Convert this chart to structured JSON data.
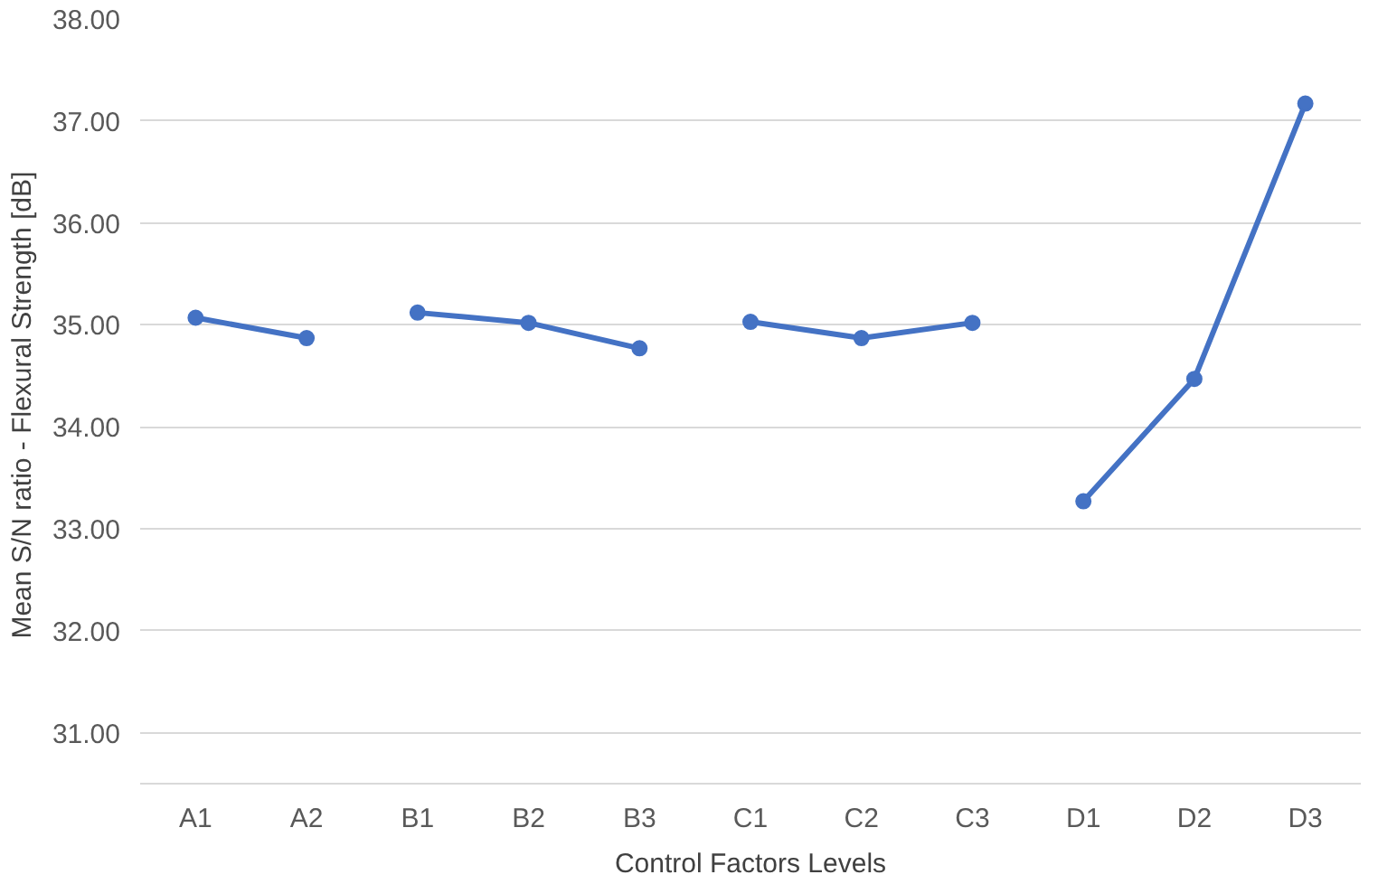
{
  "chart_data": {
    "type": "line",
    "xlabel": "Control Factors Levels",
    "ylabel": "Mean S/N ratio - Flexural  Strength [dB]",
    "categories": [
      "A1",
      "A2",
      "B1",
      "B2",
      "B3",
      "C1",
      "C2",
      "C3",
      "D1",
      "D2",
      "D3"
    ],
    "series": [
      {
        "color": "#4472c4",
        "values": [
          35.07,
          34.87,
          null,
          null,
          null,
          null,
          null,
          null,
          null,
          null,
          null
        ]
      },
      {
        "color": "#4472c4",
        "values": [
          null,
          null,
          35.12,
          35.02,
          34.77,
          null,
          null,
          null,
          null,
          null,
          null
        ]
      },
      {
        "color": "#4472c4",
        "values": [
          null,
          null,
          null,
          null,
          null,
          35.03,
          34.87,
          35.02,
          null,
          null,
          null
        ]
      },
      {
        "color": "#4472c4",
        "values": [
          null,
          null,
          null,
          null,
          null,
          null,
          null,
          null,
          33.27,
          34.47,
          37.17
        ]
      }
    ],
    "ylim": [
      30.5,
      38
    ],
    "yticks": [
      {
        "value": 31,
        "label": "31.00"
      },
      {
        "value": 32,
        "label": "32.00"
      },
      {
        "value": 33,
        "label": "33.00"
      },
      {
        "value": 34,
        "label": "34.00"
      },
      {
        "value": 35,
        "label": "35.00"
      },
      {
        "value": 36,
        "label": "36.00"
      },
      {
        "value": 37,
        "label": "37.00"
      },
      {
        "value": 38,
        "label": "38.00"
      }
    ],
    "grid": "y",
    "marker": "circle",
    "line_style": "solid"
  }
}
